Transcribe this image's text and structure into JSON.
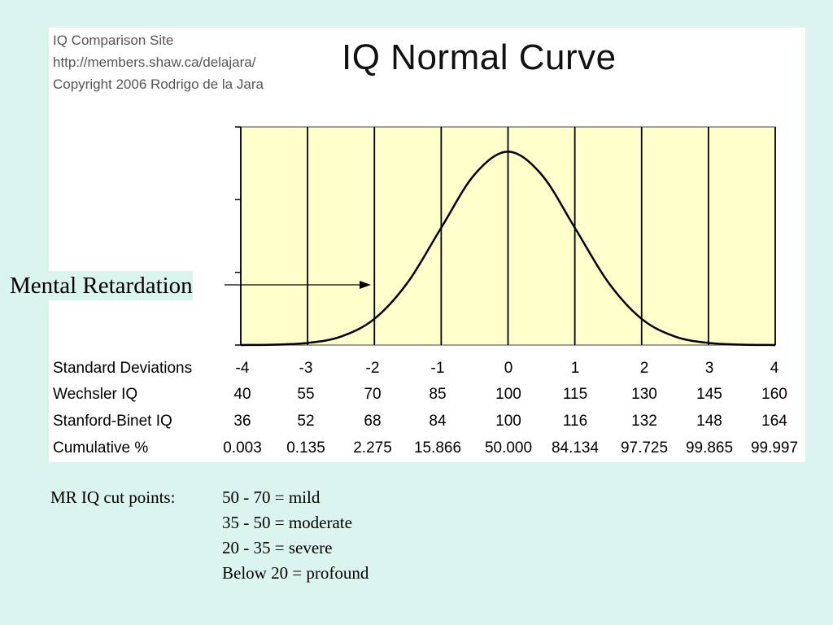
{
  "header": {
    "credit_lines": [
      "IQ Comparison Site",
      "http://members.shaw.ca/delajara/",
      "Copyright 2006 Rodrigo de la Jara"
    ],
    "title": "IQ Normal Curve"
  },
  "annotation": {
    "text": "Mental Retardation"
  },
  "table": {
    "rows": [
      {
        "label": "Standard Deviations",
        "values": [
          "-4",
          "-3",
          "-2",
          "-1",
          "0",
          "1",
          "2",
          "3",
          "4"
        ]
      },
      {
        "label": "Wechsler IQ",
        "values": [
          "40",
          "55",
          "70",
          "85",
          "100",
          "115",
          "130",
          "145",
          "160"
        ]
      },
      {
        "label": "Stanford-Binet IQ",
        "values": [
          "36",
          "52",
          "68",
          "84",
          "100",
          "116",
          "132",
          "148",
          "164"
        ]
      },
      {
        "label": "Cumulative %",
        "values": [
          "0.003",
          "0.135",
          "2.275",
          "15.866",
          "50.000",
          "84.134",
          "97.725",
          "99.865",
          "99.997"
        ]
      }
    ]
  },
  "cut_points": {
    "title": "MR IQ cut points:",
    "lines": [
      "50 - 70 = mild",
      "35 - 50 = moderate",
      "20 - 35 = severe",
      "Below 20 = profound"
    ]
  },
  "colors": {
    "background": "#dcf4f0",
    "plot_fill": "#ffffcc",
    "panel": "#ffffff",
    "curve": "#000000"
  },
  "chart_data": {
    "type": "line",
    "title": "IQ Normal Curve",
    "xlabel": "",
    "ylabel": "",
    "xlim": [
      -4,
      4
    ],
    "ylim": [
      0,
      0.45
    ],
    "grid": true,
    "x_ticks": [
      -4,
      -3,
      -2,
      -1,
      0,
      1,
      2,
      3,
      4
    ],
    "series": [
      {
        "x": [
          -4,
          -3.5,
          -3,
          -2.5,
          -2,
          -1.5,
          -1,
          -0.5,
          0,
          0.5,
          1,
          1.5,
          2,
          2.5,
          3,
          3.5,
          4
        ],
        "y": [
          0.0001,
          0.0009,
          0.0044,
          0.0175,
          0.054,
          0.1295,
          0.242,
          0.352,
          0.399,
          0.352,
          0.242,
          0.1295,
          0.054,
          0.0175,
          0.0044,
          0.0009,
          0.0001
        ]
      }
    ]
  }
}
